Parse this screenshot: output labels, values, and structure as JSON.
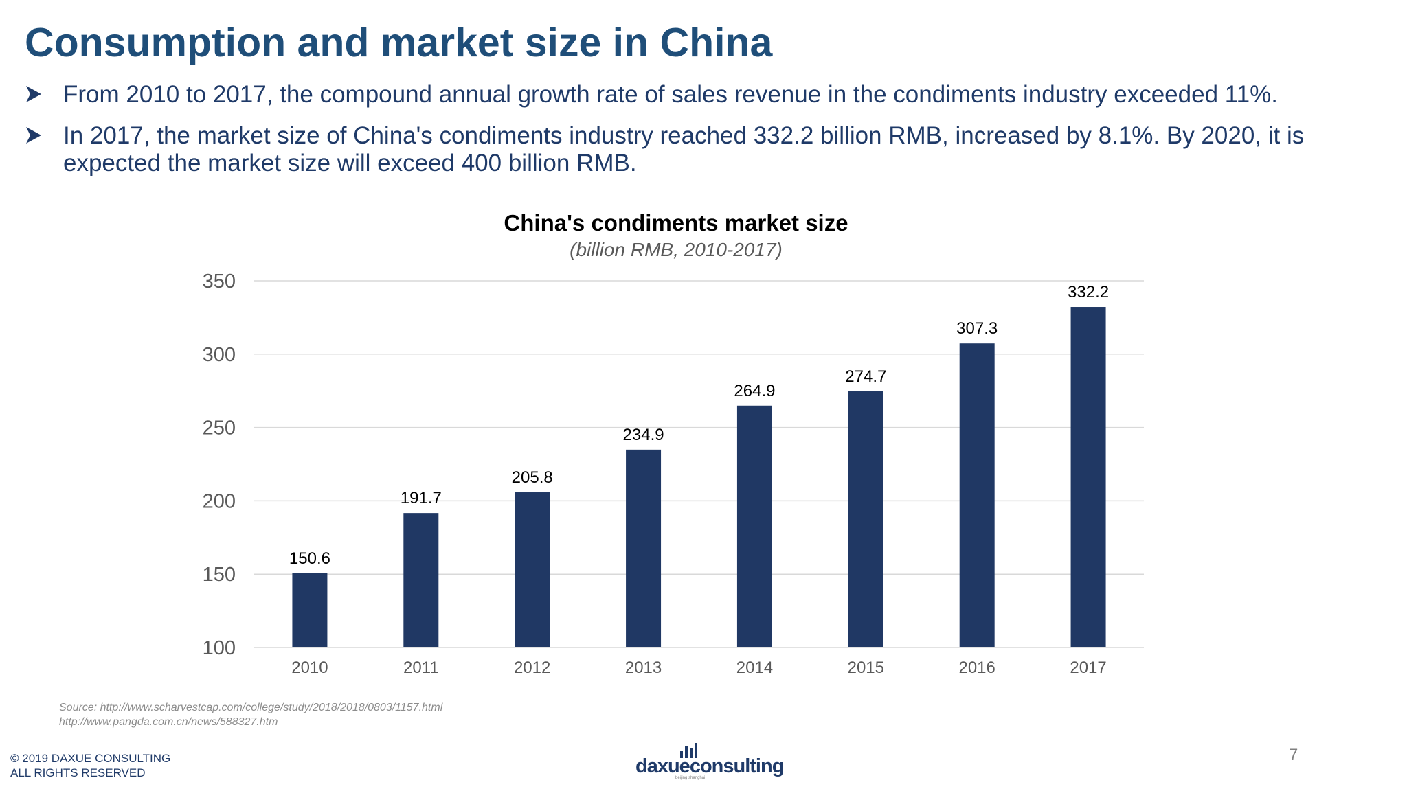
{
  "slide": {
    "title": "Consumption and market size in China",
    "bullets": [
      "From 2010 to 2017, the compound annual growth rate of sales revenue in the condiments industry exceeded 11%.",
      "In 2017, the market size of China's condiments industry reached 332.2 billion RMB, increased by 8.1%. By 2020, it is expected the market size will exceed 400 billion RMB."
    ],
    "bullet_icon": "arrowhead-bullet-icon"
  },
  "chart_data": {
    "type": "bar",
    "title": "China's condiments market size",
    "subtitle": "(billion RMB, 2010-2017)",
    "categories": [
      "2010",
      "2011",
      "2012",
      "2013",
      "2014",
      "2015",
      "2016",
      "2017"
    ],
    "values": [
      150.6,
      191.7,
      205.8,
      234.9,
      264.9,
      274.7,
      307.3,
      332.2
    ],
    "data_labels": [
      "150.6",
      "191.7",
      "205.8",
      "234.9",
      "264.9",
      "274.7",
      "307.3",
      "332.2"
    ],
    "ylim": [
      100,
      350
    ],
    "yticks": [
      100,
      150,
      200,
      250,
      300,
      350
    ],
    "ytick_labels": [
      "100",
      "150",
      "200",
      "250",
      "300",
      "350"
    ],
    "grid": true,
    "legend": "none",
    "bar_color": "#203864"
  },
  "footer": {
    "source_lines": [
      "Source:  http://www.scharvestcap.com/college/study/2018/2018/0803/1157.html",
      "http://www.pangda.com.cn/news/588327.htm"
    ],
    "copyright_lines": [
      "© 2019 DAXUE CONSULTING",
      "ALL RIGHTS RESERVED"
    ],
    "logo_text": "daxueconsulting",
    "logo_subtext": "beijing shanghai",
    "page_number": "7"
  },
  "colors": {
    "title": "#1f4e79",
    "body_text": "#1f3a68",
    "grid": "#d9d9d9",
    "axis_text": "#595959"
  }
}
